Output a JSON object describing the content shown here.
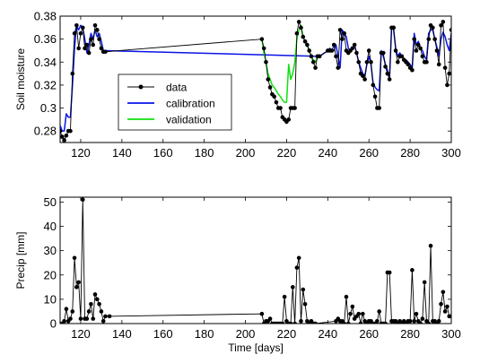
{
  "chart_data": [
    {
      "type": "line",
      "ylabel": "Soil moisture",
      "xlabel": "",
      "xlim": [
        110,
        300
      ],
      "ylim": [
        0.27,
        0.38
      ],
      "xticks": [
        "120",
        "140",
        "160",
        "180",
        "200",
        "220",
        "240",
        "260",
        "280",
        "300"
      ],
      "yticks": [
        "0.28",
        "0.3",
        "0.32",
        "0.34",
        "0.36",
        "0.38"
      ],
      "legend": {
        "position": "center-left",
        "entries": [
          "data",
          "calibration",
          "validation"
        ]
      },
      "colors": {
        "data": "#000000",
        "calibration": "#0a14e6",
        "validation": "#10e010"
      },
      "series": [
        {
          "name": "data",
          "x": [
            110,
            111,
            112,
            113,
            114,
            115,
            116,
            117,
            118,
            119,
            120,
            121,
            122,
            123,
            124,
            125,
            126,
            127,
            128,
            129,
            130,
            131,
            132,
            208,
            209,
            210,
            211,
            212,
            213,
            214,
            215,
            216,
            217,
            218,
            219,
            220,
            221,
            222,
            223,
            224,
            225,
            226,
            227,
            228,
            229,
            230,
            231,
            232,
            233,
            234,
            235,
            236,
            240,
            241,
            242,
            243,
            244,
            245,
            246,
            247,
            248,
            249,
            250,
            251,
            252,
            253,
            254,
            255,
            256,
            257,
            258,
            259,
            260,
            261,
            262,
            263,
            264,
            265,
            266,
            267,
            268,
            269,
            270,
            271,
            272,
            273,
            274,
            275,
            276,
            277,
            278,
            279,
            280,
            281,
            282,
            283,
            284,
            285,
            286,
            287,
            288,
            289,
            290,
            291,
            292,
            293,
            294,
            295,
            296,
            297,
            298,
            299,
            300
          ],
          "y": [
            0.28,
            0.275,
            0.272,
            0.276,
            0.28,
            0.28,
            0.33,
            0.365,
            0.372,
            0.352,
            0.365,
            0.37,
            0.352,
            0.355,
            0.348,
            0.36,
            0.355,
            0.372,
            0.368,
            0.36,
            0.352,
            0.349,
            0.349,
            0.36,
            0.352,
            0.34,
            0.325,
            0.318,
            0.312,
            0.31,
            0.305,
            0.3,
            0.3,
            0.292,
            0.29,
            0.288,
            0.29,
            0.3,
            0.3,
            0.3,
            0.365,
            0.375,
            0.37,
            0.362,
            0.358,
            0.355,
            0.35,
            0.345,
            0.34,
            0.335,
            0.345,
            0.345,
            0.35,
            0.35,
            0.35,
            0.355,
            0.345,
            0.335,
            0.368,
            0.36,
            0.365,
            0.35,
            0.348,
            0.35,
            0.352,
            0.355,
            0.348,
            0.34,
            0.33,
            0.328,
            0.325,
            0.34,
            0.35,
            0.34,
            0.32,
            0.31,
            0.3,
            0.3,
            0.348,
            0.348,
            0.336,
            0.33,
            0.325,
            0.37,
            0.37,
            0.35,
            0.34,
            0.345,
            0.345,
            0.342,
            0.34,
            0.338,
            0.335,
            0.333,
            0.36,
            0.35,
            0.355,
            0.352,
            0.345,
            0.34,
            0.34,
            0.36,
            0.372,
            0.37,
            0.36,
            0.35,
            0.338,
            0.372,
            0.375,
            0.335,
            0.32,
            0.33,
            0.368
          ],
          "markers": true
        },
        {
          "name": "calibration",
          "x": [
            110,
            111,
            112,
            113,
            114,
            115,
            116,
            117,
            118,
            119,
            120,
            121,
            122,
            123,
            124,
            125,
            126,
            127,
            128,
            129,
            130,
            131,
            132,
            236,
            240,
            241,
            242,
            243,
            244,
            245,
            246,
            247,
            248,
            249,
            250,
            251,
            252,
            253,
            254,
            255,
            256,
            257,
            258,
            259,
            260,
            261,
            262,
            263,
            264,
            265,
            266,
            267,
            268,
            269,
            270,
            271,
            272,
            273,
            274,
            275,
            276,
            277,
            278,
            279,
            280,
            281,
            282,
            283,
            284,
            285,
            286,
            287,
            288,
            289,
            290,
            291,
            292,
            293,
            294,
            295,
            296,
            297,
            298,
            299,
            300
          ],
          "y": [
            0.285,
            0.28,
            0.28,
            0.295,
            0.292,
            0.292,
            0.32,
            0.352,
            0.372,
            0.368,
            0.372,
            0.37,
            0.36,
            0.348,
            0.355,
            0.365,
            0.36,
            0.368,
            0.362,
            0.365,
            0.358,
            0.35,
            0.35,
            0.345,
            0.35,
            0.352,
            0.35,
            0.35,
            0.355,
            0.345,
            0.335,
            0.368,
            0.365,
            0.362,
            0.352,
            0.35,
            0.352,
            0.355,
            0.348,
            0.34,
            0.335,
            0.33,
            0.328,
            0.338,
            0.345,
            0.338,
            0.322,
            0.318,
            0.316,
            0.315,
            0.35,
            0.345,
            0.338,
            0.333,
            0.325,
            0.37,
            0.368,
            0.352,
            0.345,
            0.348,
            0.345,
            0.342,
            0.342,
            0.34,
            0.338,
            0.335,
            0.365,
            0.355,
            0.358,
            0.352,
            0.35,
            0.345,
            0.342,
            0.365,
            0.368,
            0.368,
            0.36,
            0.353,
            0.345,
            0.36,
            0.366,
            0.362,
            0.355,
            0.35,
            0.365
          ]
        },
        {
          "name": "validation",
          "x": [
            208,
            209,
            210,
            211,
            212,
            213,
            214,
            215,
            216,
            217,
            218,
            219,
            220,
            221,
            222,
            223,
            224,
            225,
            226,
            227,
            228,
            229,
            230,
            231,
            232,
            233,
            234,
            235,
            236
          ],
          "y": [
            0.36,
            0.348,
            0.34,
            0.33,
            0.325,
            0.32,
            0.318,
            0.315,
            0.312,
            0.31,
            0.307,
            0.305,
            0.305,
            0.338,
            0.325,
            0.33,
            0.34,
            0.36,
            0.368,
            0.372,
            0.362,
            0.358,
            0.355,
            0.35,
            0.345,
            0.342,
            0.34,
            0.345,
            0.345
          ]
        }
      ]
    },
    {
      "type": "line",
      "ylabel": "Precip [mm]",
      "xlabel": "Time [days]",
      "xlim": [
        110,
        300
      ],
      "ylim": [
        0,
        52
      ],
      "xticks": [
        "120",
        "140",
        "160",
        "180",
        "200",
        "220",
        "240",
        "260",
        "280",
        "300"
      ],
      "yticks": [
        "0",
        "10",
        "20",
        "30",
        "40",
        "50"
      ],
      "colors": {
        "data": "#000000"
      },
      "series": [
        {
          "name": "",
          "x": [
            110,
            111,
            112,
            113,
            114,
            115,
            116,
            117,
            118,
            119,
            120,
            121,
            122,
            123,
            124,
            125,
            126,
            127,
            128,
            129,
            130,
            131,
            132,
            134,
            208,
            209,
            210,
            211,
            212,
            213,
            214,
            215,
            216,
            217,
            218,
            219,
            220,
            221,
            222,
            223,
            224,
            225,
            226,
            227,
            228,
            229,
            230,
            231,
            232,
            233,
            234,
            244,
            245,
            246,
            247,
            248,
            249,
            250,
            251,
            252,
            253,
            254,
            255,
            256,
            257,
            258,
            259,
            260,
            261,
            262,
            263,
            264,
            265,
            266,
            267,
            268,
            269,
            270,
            271,
            272,
            273,
            274,
            275,
            276,
            277,
            278,
            279,
            280,
            281,
            282,
            283,
            284,
            285,
            286,
            287,
            288,
            289,
            290,
            291,
            292,
            293,
            294,
            295,
            296,
            297,
            298,
            299,
            300
          ],
          "y": [
            0,
            0,
            1,
            6,
            1,
            2,
            5,
            27,
            15,
            17,
            2,
            51,
            2,
            2,
            5,
            8,
            2,
            12,
            10,
            8,
            5,
            1,
            3,
            3,
            4,
            0,
            1,
            1,
            2,
            0,
            0,
            0,
            0,
            0,
            0,
            11,
            1,
            0,
            0,
            15,
            0,
            23,
            27,
            1,
            14,
            8,
            1,
            0,
            1,
            0,
            0,
            1,
            2,
            1,
            1,
            0,
            11,
            0,
            4,
            7,
            2,
            3,
            4,
            0,
            4,
            1,
            0,
            1,
            1,
            0,
            0,
            1,
            5,
            0,
            0,
            0,
            21,
            21,
            1,
            1,
            1,
            0,
            1,
            0,
            1,
            0,
            1,
            1,
            22,
            1,
            4,
            1,
            0,
            2,
            17,
            1,
            0,
            32,
            1,
            1,
            0,
            1,
            8,
            13,
            5,
            7,
            3,
            3
          ]
        }
      ]
    }
  ]
}
